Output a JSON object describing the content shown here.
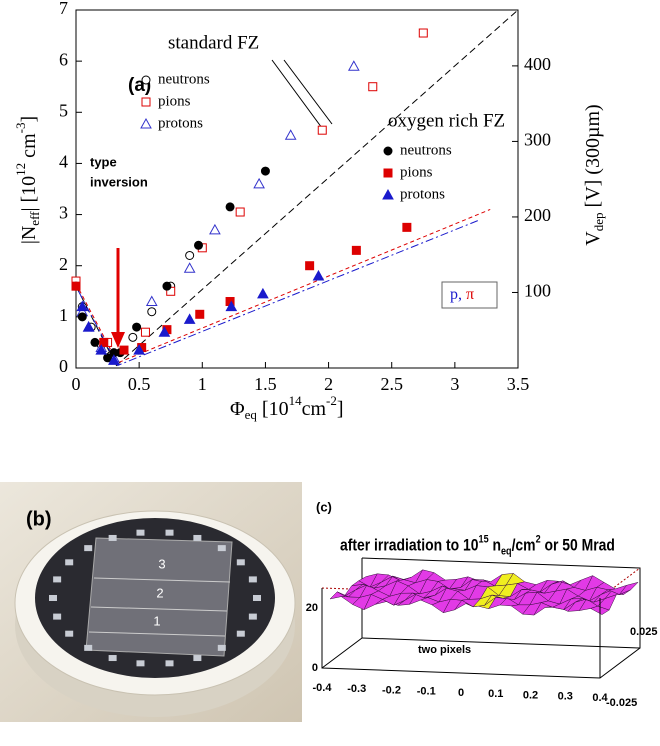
{
  "chart_data": {
    "type": "scatter",
    "panel_label": "(a)",
    "xlabel": [
      "Φ",
      "eq",
      " [10",
      "14",
      "cm",
      "-2",
      "]"
    ],
    "ylabel": [
      "|N",
      "eff",
      "| [10",
      "12",
      " cm",
      "-3",
      "]"
    ],
    "y2label": [
      "V",
      "dep",
      " [V]    (300µm)"
    ],
    "xlim": [
      0,
      3.5
    ],
    "xticks": [
      0,
      0.5,
      1,
      1.5,
      2,
      2.5,
      3,
      3.5
    ],
    "ylim": [
      0,
      7
    ],
    "yticks": [
      0,
      1,
      2,
      3,
      4,
      5,
      6,
      7
    ],
    "y2lim": [
      0,
      474
    ],
    "y2ticks": [
      100,
      200,
      300,
      400
    ],
    "groups": [
      {
        "name": "standard FZ",
        "series": [
          {
            "name": "neutrons",
            "color": "#000000",
            "marker": "circle",
            "filled": false,
            "x": [
              0,
              0.05,
              0.12,
              0.2,
              0.28,
              0.45,
              0.6,
              0.75,
              0.9
            ],
            "values": [
              1.6,
              1.2,
              0.8,
              0.45,
              0.25,
              0.6,
              1.1,
              1.6,
              2.2
            ]
          },
          {
            "name": "pions",
            "color": "#dd0000",
            "marker": "square",
            "filled": false,
            "x": [
              0,
              0.25,
              0.55,
              0.75,
              1.0,
              1.3,
              1.95,
              2.35,
              2.75
            ],
            "values": [
              1.7,
              0.5,
              0.7,
              1.5,
              2.35,
              3.05,
              4.65,
              5.5,
              6.55
            ]
          },
          {
            "name": "protons",
            "color": "#3333cc",
            "marker": "triangle",
            "filled": false,
            "x": [
              0.05,
              0.1,
              0.2,
              0.3,
              0.6,
              0.9,
              1.1,
              1.45,
              1.7,
              2.2
            ],
            "values": [
              1.1,
              0.8,
              0.4,
              0.2,
              1.3,
              1.95,
              2.7,
              3.6,
              4.55,
              5.9
            ]
          }
        ]
      },
      {
        "name": "oxygen rich FZ",
        "series": [
          {
            "name": "neutrons",
            "color": "#000000",
            "marker": "circle",
            "filled": true,
            "x": [
              0,
              0.05,
              0.15,
              0.25,
              0.3,
              0.35,
              0.48,
              0.72,
              0.97,
              1.22,
              1.5
            ],
            "values": [
              1.6,
              1.0,
              0.5,
              0.2,
              0.3,
              0.3,
              0.8,
              1.6,
              2.4,
              3.15,
              3.85
            ]
          },
          {
            "name": "pions",
            "color": "#dd0000",
            "marker": "square",
            "filled": true,
            "x": [
              0,
              0.22,
              0.38,
              0.52,
              0.72,
              0.98,
              1.22,
              1.85,
              2.22,
              2.62
            ],
            "values": [
              1.6,
              0.5,
              0.35,
              0.4,
              0.75,
              1.05,
              1.3,
              2.0,
              2.3,
              2.75
            ]
          },
          {
            "name": "protons",
            "color": "#1a1acc",
            "marker": "triangle",
            "filled": true,
            "x": [
              0.05,
              0.1,
              0.2,
              0.3,
              0.5,
              0.7,
              0.9,
              1.23,
              1.48,
              1.92
            ],
            "values": [
              1.2,
              0.8,
              0.35,
              0.15,
              0.35,
              0.7,
              0.95,
              1.2,
              1.45,
              1.8
            ]
          }
        ]
      }
    ],
    "fits": [
      {
        "color": "#000000",
        "x": [
          0,
          0.32,
          3.5
        ],
        "values": [
          1.6,
          0.05,
          7
        ]
      },
      {
        "color": "#dd0000",
        "x": [
          0,
          0.33,
          3.28
        ],
        "values": [
          1.65,
          0.1,
          3.1
        ]
      },
      {
        "color": "#1a1acc",
        "x": [
          0.02,
          0.33,
          3.2
        ],
        "values": [
          1.5,
          0.05,
          2.9
        ]
      }
    ],
    "annotations": {
      "inversion": [
        "type",
        "inversion"
      ],
      "particles": [
        {
          "text": "p,",
          "color": "#1a1acc"
        },
        {
          "text": " π",
          "color": "#dd0000"
        }
      ]
    }
  },
  "photo": {
    "label": "(b)",
    "sensors": [
      "3",
      "2",
      "1"
    ]
  },
  "surface_plot": {
    "label": "(c)",
    "title": [
      "after irradiation to 10",
      "15",
      " n",
      "eq",
      "/cm",
      "2",
      " or 50 Mrad"
    ],
    "annotation": "two pixels",
    "zticks": [
      0,
      20
    ],
    "xticks": [
      -0.4,
      -0.3,
      -0.2,
      -0.1,
      0,
      0.1,
      0.2,
      0.3,
      0.4
    ],
    "yticks": [
      0.025,
      -0.025
    ]
  }
}
